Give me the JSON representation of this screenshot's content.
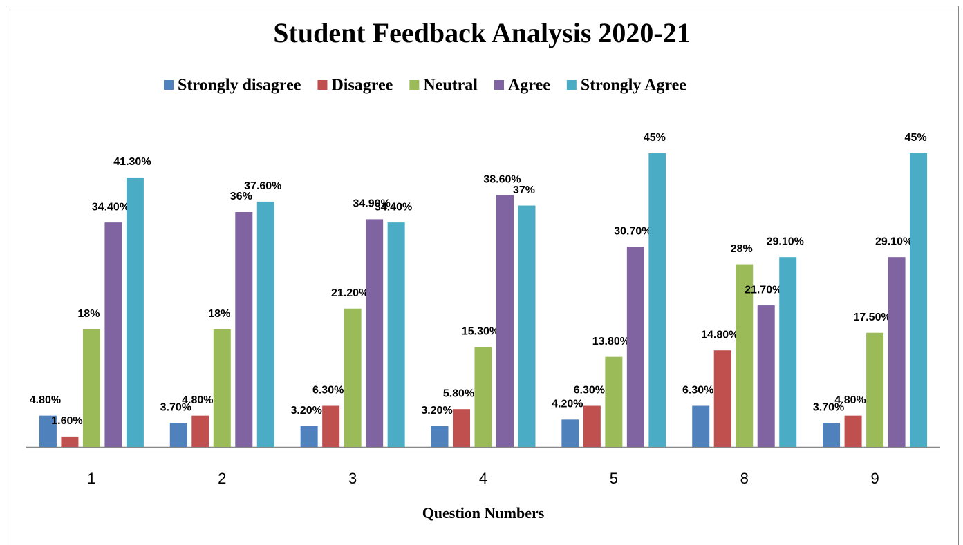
{
  "chart_data": {
    "type": "bar",
    "title": "Student Feedback Analysis 2020-21",
    "x_label": "Question Numbers",
    "categories": [
      "1",
      "2",
      "3",
      "4",
      "5",
      "8",
      "9"
    ],
    "series": [
      {
        "name": "Strongly disagree",
        "color": "#4f81bd",
        "values": [
          4.8,
          3.7,
          3.2,
          3.2,
          4.2,
          6.3,
          3.7
        ],
        "value_labels": [
          "4.80%",
          "3.70%",
          "3.20%",
          "3.20%",
          "4.20%",
          "6.30%",
          "3.70%"
        ]
      },
      {
        "name": "Disagree",
        "color": "#c0504d",
        "values": [
          1.6,
          4.8,
          6.3,
          5.8,
          6.3,
          14.8,
          4.8
        ],
        "value_labels": [
          "1.60%",
          "4.80%",
          "6.30%",
          "5.80%",
          "6.30%",
          "14.80%",
          "4.80%"
        ]
      },
      {
        "name": "Neutral",
        "color": "#9bbb59",
        "values": [
          18,
          18,
          21.2,
          15.3,
          13.8,
          28,
          17.5
        ],
        "value_labels": [
          "18%",
          "18%",
          "21.20%",
          "15.30%",
          "13.80%",
          "28%",
          "17.50%"
        ]
      },
      {
        "name": "Agree",
        "color": "#8064a2",
        "values": [
          34.4,
          36,
          34.9,
          38.6,
          30.7,
          21.7,
          29.1
        ],
        "value_labels": [
          "34.40%",
          "36%",
          "34.90%",
          "38.60%",
          "30.70%",
          "21.70%",
          "29.10%"
        ]
      },
      {
        "name": "Strongly Agree",
        "color": "#4bacc6",
        "values": [
          41.3,
          37.6,
          34.4,
          37,
          45,
          29.1,
          45
        ],
        "value_labels": [
          "41.30%",
          "37.60%",
          "34.40%",
          "37%",
          "45%",
          "29.10%",
          "45%"
        ]
      }
    ],
    "legend": "top"
  }
}
